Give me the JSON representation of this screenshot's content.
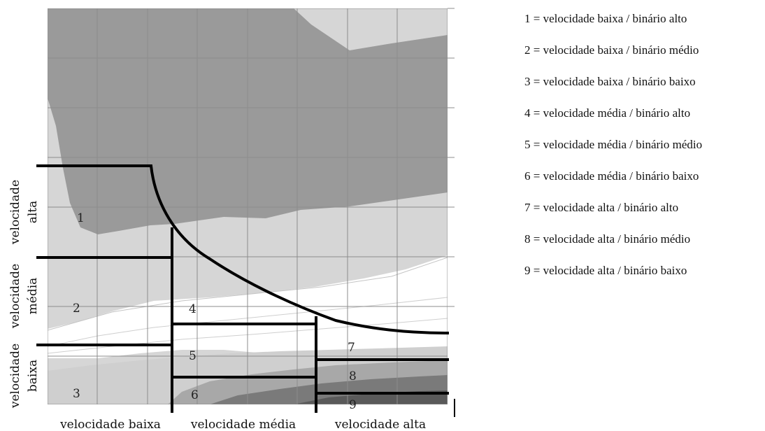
{
  "region_numbers": [
    "1",
    "2",
    "3",
    "4",
    "5",
    "6",
    "7",
    "8",
    "9"
  ],
  "y_labels": {
    "alta": [
      "velocidade",
      "alta"
    ],
    "media": [
      "velocidade",
      "média"
    ],
    "baixa": [
      "velocidade",
      "baixa"
    ]
  },
  "x_labels": {
    "baixa": "velocidade baixa",
    "media": "velocidade média",
    "alta": "velocidade alta"
  },
  "legend": [
    "1 = velocidade baixa / binário alto",
    "2 = velocidade baixa / binário médio",
    "3 = velocidade baixa / binário baixo",
    "4 = velocidade média / binário alto",
    "5 = velocidade média / binário médio",
    "6 = velocidade média / binário baixo",
    "7 = velocidade alta / binário alto",
    "8 = velocidade alta / binário médio",
    "9 = velocidade alta / binário baixo"
  ],
  "colors": {
    "band_darkest": "#9a9a9a",
    "band_dark": "#b4b4b4",
    "band_light": "#d6d6d6",
    "band_white": "#ffffff",
    "band_bottom_1": "#cfcfcf",
    "band_bottom_2": "#a8a8a8",
    "band_bottom_3": "#7a7a7a",
    "band_bottom_4": "#5a5a5a",
    "grid": "#8c8c8c",
    "boundary": "#000000"
  }
}
